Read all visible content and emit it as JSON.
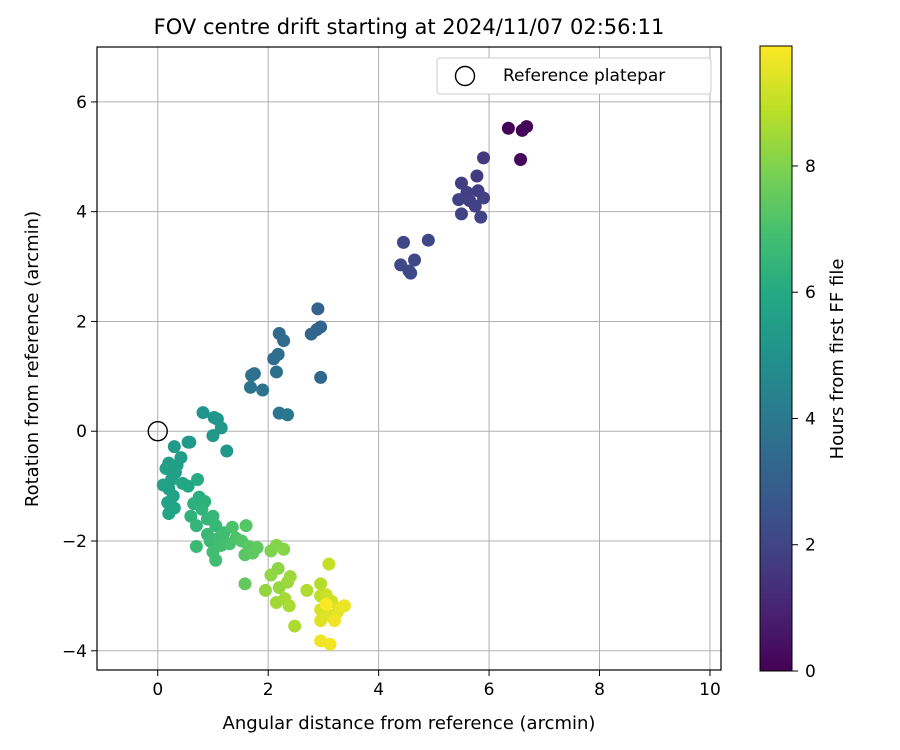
{
  "chart_data": {
    "type": "scatter",
    "title": "FOV centre drift starting at 2024/11/07 02:56:11",
    "xlabel": "Angular distance from reference (arcmin)",
    "ylabel": "Rotation from reference (arcmin)",
    "xlim": [
      -1.1,
      10.2
    ],
    "ylim": [
      -4.35,
      7.0
    ],
    "xticks": [
      0,
      2,
      4,
      6,
      8,
      10
    ],
    "yticks": [
      -4,
      -2,
      0,
      2,
      4,
      6
    ],
    "grid": true,
    "legend": {
      "placement": "top-right",
      "entries": [
        "Reference platepar"
      ]
    },
    "reference_point": {
      "x": 0,
      "y": 0,
      "label": "Reference platepar"
    },
    "colorbar": {
      "label": "Hours from first FF file",
      "range": [
        0,
        9.9
      ],
      "ticks": [
        0,
        2,
        4,
        6,
        8
      ],
      "colormap": "viridis"
    },
    "series": [
      {
        "points": [
          {
            "x": 6.35,
            "y": 5.52,
            "t": 0.05
          },
          {
            "x": 6.6,
            "y": 5.48,
            "t": 0.1
          },
          {
            "x": 6.68,
            "y": 5.55,
            "t": 0.15
          },
          {
            "x": 6.57,
            "y": 4.95,
            "t": 0.2
          },
          {
            "x": 5.9,
            "y": 4.98,
            "t": 1.6
          },
          {
            "x": 5.78,
            "y": 4.65,
            "t": 1.7
          },
          {
            "x": 5.5,
            "y": 4.52,
            "t": 1.75
          },
          {
            "x": 5.6,
            "y": 4.35,
            "t": 1.8
          },
          {
            "x": 5.8,
            "y": 4.38,
            "t": 1.8
          },
          {
            "x": 5.45,
            "y": 4.22,
            "t": 1.85
          },
          {
            "x": 5.65,
            "y": 4.2,
            "t": 1.85
          },
          {
            "x": 5.9,
            "y": 4.25,
            "t": 1.9
          },
          {
            "x": 5.75,
            "y": 4.1,
            "t": 1.9
          },
          {
            "x": 5.5,
            "y": 3.96,
            "t": 1.95
          },
          {
            "x": 5.85,
            "y": 3.9,
            "t": 1.95
          },
          {
            "x": 4.45,
            "y": 3.44,
            "t": 2.1
          },
          {
            "x": 4.9,
            "y": 3.48,
            "t": 2.1
          },
          {
            "x": 4.4,
            "y": 3.03,
            "t": 2.15
          },
          {
            "x": 4.65,
            "y": 3.12,
            "t": 2.15
          },
          {
            "x": 4.55,
            "y": 2.92,
            "t": 2.2
          },
          {
            "x": 4.58,
            "y": 2.88,
            "t": 2.2
          },
          {
            "x": 2.9,
            "y": 2.23,
            "t": 3.1
          },
          {
            "x": 2.95,
            "y": 1.9,
            "t": 3.2
          },
          {
            "x": 2.88,
            "y": 1.85,
            "t": 3.2
          },
          {
            "x": 2.78,
            "y": 1.77,
            "t": 3.25
          },
          {
            "x": 2.95,
            "y": 0.98,
            "t": 3.3
          },
          {
            "x": 2.2,
            "y": 1.78,
            "t": 3.4
          },
          {
            "x": 2.28,
            "y": 1.65,
            "t": 3.45
          },
          {
            "x": 2.18,
            "y": 1.4,
            "t": 3.5
          },
          {
            "x": 2.1,
            "y": 1.32,
            "t": 3.55
          },
          {
            "x": 2.15,
            "y": 1.08,
            "t": 3.6
          },
          {
            "x": 1.75,
            "y": 1.05,
            "t": 3.7
          },
          {
            "x": 1.7,
            "y": 1.02,
            "t": 3.7
          },
          {
            "x": 1.68,
            "y": 0.8,
            "t": 3.75
          },
          {
            "x": 1.9,
            "y": 0.75,
            "t": 3.8
          },
          {
            "x": 2.2,
            "y": 0.33,
            "t": 3.9
          },
          {
            "x": 2.35,
            "y": 0.3,
            "t": 3.95
          },
          {
            "x": 0.82,
            "y": 0.34,
            "t": 5.1
          },
          {
            "x": 1.08,
            "y": 0.22,
            "t": 5.15
          },
          {
            "x": 1.02,
            "y": 0.25,
            "t": 5.15
          },
          {
            "x": 1.15,
            "y": 0.06,
            "t": 5.2
          },
          {
            "x": 1.0,
            "y": -0.08,
            "t": 5.2
          },
          {
            "x": 1.25,
            "y": -0.36,
            "t": 5.25
          },
          {
            "x": 0.55,
            "y": -0.2,
            "t": 5.3
          },
          {
            "x": 0.58,
            "y": -0.2,
            "t": 5.35
          },
          {
            "x": 0.3,
            "y": -0.28,
            "t": 5.4
          },
          {
            "x": 0.42,
            "y": -0.48,
            "t": 5.45
          },
          {
            "x": 0.35,
            "y": -0.62,
            "t": 5.5
          },
          {
            "x": 0.2,
            "y": -0.58,
            "t": 5.5
          },
          {
            "x": 0.15,
            "y": -0.68,
            "t": 5.55
          },
          {
            "x": 0.32,
            "y": -0.75,
            "t": 5.55
          },
          {
            "x": 0.25,
            "y": -0.88,
            "t": 5.6
          },
          {
            "x": 0.1,
            "y": -0.98,
            "t": 5.65
          },
          {
            "x": 0.2,
            "y": -1.05,
            "t": 5.65
          },
          {
            "x": 0.28,
            "y": -1.18,
            "t": 5.7
          },
          {
            "x": 0.18,
            "y": -1.3,
            "t": 5.7
          },
          {
            "x": 0.3,
            "y": -1.4,
            "t": 5.75
          },
          {
            "x": 0.2,
            "y": -1.5,
            "t": 5.75
          },
          {
            "x": 0.45,
            "y": -0.95,
            "t": 5.85
          },
          {
            "x": 0.55,
            "y": -1.0,
            "t": 5.9
          },
          {
            "x": 0.72,
            "y": -0.88,
            "t": 6.1
          },
          {
            "x": 0.75,
            "y": -1.2,
            "t": 6.2
          },
          {
            "x": 0.65,
            "y": -1.32,
            "t": 6.25
          },
          {
            "x": 0.85,
            "y": -1.28,
            "t": 6.3
          },
          {
            "x": 0.6,
            "y": -1.55,
            "t": 6.35
          },
          {
            "x": 0.8,
            "y": -1.42,
            "t": 6.4
          },
          {
            "x": 0.7,
            "y": -1.72,
            "t": 6.45
          },
          {
            "x": 0.9,
            "y": -1.6,
            "t": 6.5
          },
          {
            "x": 1.0,
            "y": -1.55,
            "t": 6.55
          },
          {
            "x": 0.9,
            "y": -1.88,
            "t": 6.6
          },
          {
            "x": 1.05,
            "y": -1.72,
            "t": 6.6
          },
          {
            "x": 0.95,
            "y": -2.0,
            "t": 6.7
          },
          {
            "x": 0.7,
            "y": -2.1,
            "t": 6.7
          },
          {
            "x": 1.1,
            "y": -1.95,
            "t": 6.75
          },
          {
            "x": 1.0,
            "y": -2.2,
            "t": 6.8
          },
          {
            "x": 1.05,
            "y": -2.35,
            "t": 6.85
          },
          {
            "x": 1.2,
            "y": -1.85,
            "t": 6.85
          },
          {
            "x": 1.15,
            "y": -2.08,
            "t": 6.9
          },
          {
            "x": 1.3,
            "y": -2.05,
            "t": 7.0
          },
          {
            "x": 1.35,
            "y": -1.75,
            "t": 7.05
          },
          {
            "x": 1.42,
            "y": -1.95,
            "t": 7.1
          },
          {
            "x": 1.52,
            "y": -2.0,
            "t": 7.2
          },
          {
            "x": 1.6,
            "y": -1.72,
            "t": 7.25
          },
          {
            "x": 1.58,
            "y": -2.25,
            "t": 7.3
          },
          {
            "x": 1.65,
            "y": -2.1,
            "t": 7.35
          },
          {
            "x": 1.72,
            "y": -2.22,
            "t": 7.4
          },
          {
            "x": 1.8,
            "y": -2.12,
            "t": 7.45
          },
          {
            "x": 1.58,
            "y": -2.78,
            "t": 7.5
          },
          {
            "x": 2.05,
            "y": -2.18,
            "t": 8.0
          },
          {
            "x": 2.15,
            "y": -2.08,
            "t": 8.05
          },
          {
            "x": 2.28,
            "y": -2.15,
            "t": 8.1
          },
          {
            "x": 2.18,
            "y": -2.5,
            "t": 8.2
          },
          {
            "x": 2.05,
            "y": -2.62,
            "t": 8.25
          },
          {
            "x": 1.95,
            "y": -2.9,
            "t": 8.3
          },
          {
            "x": 2.2,
            "y": -2.85,
            "t": 8.35
          },
          {
            "x": 2.35,
            "y": -2.75,
            "t": 8.4
          },
          {
            "x": 2.4,
            "y": -2.65,
            "t": 8.45
          },
          {
            "x": 2.15,
            "y": -3.12,
            "t": 8.5
          },
          {
            "x": 2.3,
            "y": -3.05,
            "t": 8.55
          },
          {
            "x": 2.38,
            "y": -3.18,
            "t": 8.6
          },
          {
            "x": 2.48,
            "y": -3.55,
            "t": 8.65
          },
          {
            "x": 2.7,
            "y": -2.9,
            "t": 8.7
          },
          {
            "x": 2.95,
            "y": -2.78,
            "t": 8.8
          },
          {
            "x": 2.95,
            "y": -3.0,
            "t": 8.9
          },
          {
            "x": 3.1,
            "y": -2.42,
            "t": 9.0
          },
          {
            "x": 3.05,
            "y": -2.98,
            "t": 9.1
          },
          {
            "x": 3.15,
            "y": -3.1,
            "t": 9.2
          },
          {
            "x": 2.95,
            "y": -3.25,
            "t": 9.3
          },
          {
            "x": 3.1,
            "y": -3.35,
            "t": 9.4
          },
          {
            "x": 2.95,
            "y": -3.45,
            "t": 9.45
          },
          {
            "x": 3.25,
            "y": -3.3,
            "t": 9.5
          },
          {
            "x": 3.3,
            "y": -3.22,
            "t": 9.55
          },
          {
            "x": 3.38,
            "y": -3.18,
            "t": 9.6
          },
          {
            "x": 3.2,
            "y": -3.45,
            "t": 9.65
          },
          {
            "x": 2.95,
            "y": -3.82,
            "t": 9.7
          },
          {
            "x": 3.12,
            "y": -3.88,
            "t": 9.75
          },
          {
            "x": 3.05,
            "y": -3.15,
            "t": 9.85
          }
        ]
      }
    ]
  }
}
